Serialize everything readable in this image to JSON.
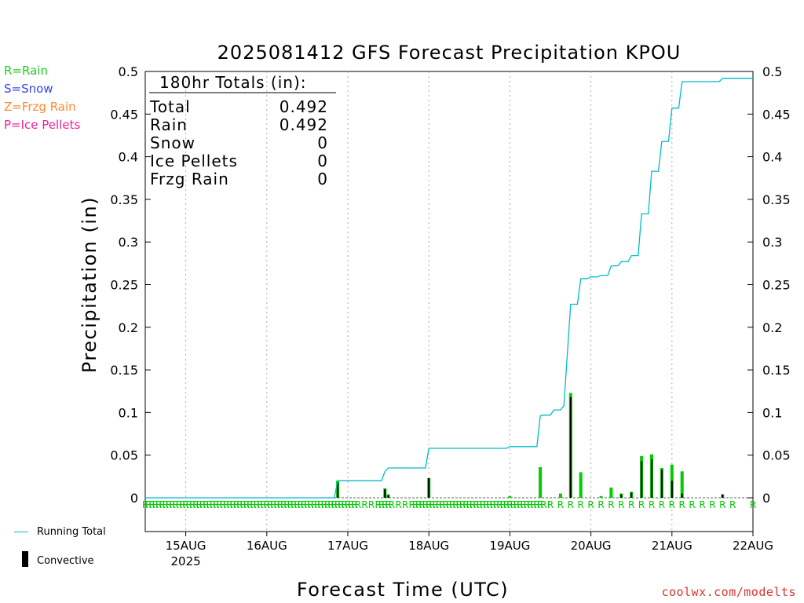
{
  "chart_data": {
    "type": "bar",
    "title": "2025081412 GFS Forecast Precipitation KPOU",
    "ylabel": "Precipitation (in)",
    "xlabel": "Forecast Time (UTC)",
    "ylim": [
      0,
      0.5
    ],
    "yticks": [
      "0",
      "0.05",
      "0.1",
      "0.15",
      "0.2",
      "0.25",
      "0.3",
      "0.35",
      "0.4",
      "0.45",
      "0.5"
    ],
    "xlim_hours": [
      0,
      180
    ],
    "xticks": [
      {
        "label": "15AUG",
        "hour": 12,
        "sublabel": "2025"
      },
      {
        "label": "16AUG",
        "hour": 36
      },
      {
        "label": "17AUG",
        "hour": 60
      },
      {
        "label": "18AUG",
        "hour": 84
      },
      {
        "label": "19AUG",
        "hour": 108
      },
      {
        "label": "20AUG",
        "hour": 132
      },
      {
        "label": "21AUG",
        "hour": 156
      },
      {
        "label": "22AUG",
        "hour": 180
      }
    ],
    "totals_box": {
      "header": "180hr Totals (in):",
      "rows": [
        {
          "label": "Total",
          "value": "0.492"
        },
        {
          "label": "Rain",
          "value": "0.492"
        },
        {
          "label": "Snow",
          "value": "0"
        },
        {
          "label": "Ice Pellets",
          "value": "0"
        },
        {
          "label": "Frzg Rain",
          "value": "0"
        }
      ]
    },
    "series": [
      {
        "name": "Rain",
        "values": [
          {
            "hour": 57,
            "value": 0.02
          },
          {
            "hour": 71,
            "value": 0.011
          },
          {
            "hour": 72,
            "value": 0.004
          },
          {
            "hour": 84,
            "value": 0.023
          },
          {
            "hour": 108,
            "value": 0.002
          },
          {
            "hour": 117,
            "value": 0.036
          },
          {
            "hour": 123,
            "value": 0.005
          },
          {
            "hour": 126,
            "value": 0.123
          },
          {
            "hour": 129,
            "value": 0.03
          },
          {
            "hour": 135,
            "value": 0.002
          },
          {
            "hour": 138,
            "value": 0.012
          },
          {
            "hour": 141,
            "value": 0.005
          },
          {
            "hour": 144,
            "value": 0.007
          },
          {
            "hour": 147,
            "value": 0.049
          },
          {
            "hour": 150,
            "value": 0.051
          },
          {
            "hour": 153,
            "value": 0.035
          },
          {
            "hour": 156,
            "value": 0.039
          },
          {
            "hour": 159,
            "value": 0.031
          },
          {
            "hour": 171,
            "value": 0.004
          }
        ]
      },
      {
        "name": "Convective",
        "values": [
          {
            "hour": 57,
            "value": 0.018
          },
          {
            "hour": 71,
            "value": 0.01
          },
          {
            "hour": 72,
            "value": 0.003
          },
          {
            "hour": 84,
            "value": 0.023
          },
          {
            "hour": 126,
            "value": 0.118
          },
          {
            "hour": 141,
            "value": 0.004
          },
          {
            "hour": 144,
            "value": 0.006
          },
          {
            "hour": 147,
            "value": 0.043
          },
          {
            "hour": 150,
            "value": 0.045
          },
          {
            "hour": 153,
            "value": 0.033
          },
          {
            "hour": 156,
            "value": 0.02
          },
          {
            "hour": 159,
            "value": 0.005
          },
          {
            "hour": 171,
            "value": 0.004
          }
        ]
      },
      {
        "name": "Running Total",
        "values": [
          {
            "hour": 0,
            "value": 0
          },
          {
            "hour": 56,
            "value": 0
          },
          {
            "hour": 57,
            "value": 0.02
          },
          {
            "hour": 70,
            "value": 0.02
          },
          {
            "hour": 71,
            "value": 0.031
          },
          {
            "hour": 72,
            "value": 0.035
          },
          {
            "hour": 83,
            "value": 0.035
          },
          {
            "hour": 84,
            "value": 0.058
          },
          {
            "hour": 107,
            "value": 0.058
          },
          {
            "hour": 108,
            "value": 0.06
          },
          {
            "hour": 116,
            "value": 0.06
          },
          {
            "hour": 117,
            "value": 0.096
          },
          {
            "hour": 118,
            "value": 0.097
          },
          {
            "hour": 120,
            "value": 0.097
          },
          {
            "hour": 121,
            "value": 0.103
          },
          {
            "hour": 123,
            "value": 0.103
          },
          {
            "hour": 124,
            "value": 0.108
          },
          {
            "hour": 126,
            "value": 0.227
          },
          {
            "hour": 128,
            "value": 0.227
          },
          {
            "hour": 129,
            "value": 0.257
          },
          {
            "hour": 131,
            "value": 0.257
          },
          {
            "hour": 132,
            "value": 0.259
          },
          {
            "hour": 134,
            "value": 0.259
          },
          {
            "hour": 135,
            "value": 0.261
          },
          {
            "hour": 137,
            "value": 0.261
          },
          {
            "hour": 138,
            "value": 0.272
          },
          {
            "hour": 140,
            "value": 0.272
          },
          {
            "hour": 141,
            "value": 0.277
          },
          {
            "hour": 143,
            "value": 0.277
          },
          {
            "hour": 144,
            "value": 0.284
          },
          {
            "hour": 146,
            "value": 0.284
          },
          {
            "hour": 147,
            "value": 0.333
          },
          {
            "hour": 149,
            "value": 0.333
          },
          {
            "hour": 150,
            "value": 0.383
          },
          {
            "hour": 152,
            "value": 0.383
          },
          {
            "hour": 153,
            "value": 0.418
          },
          {
            "hour": 155,
            "value": 0.418
          },
          {
            "hour": 156,
            "value": 0.457
          },
          {
            "hour": 158,
            "value": 0.457
          },
          {
            "hour": 159,
            "value": 0.488
          },
          {
            "hour": 170,
            "value": 0.488
          },
          {
            "hour": 171,
            "value": 0.492
          },
          {
            "hour": 180,
            "value": 0.492
          }
        ]
      }
    ],
    "precip_type_marks": {
      "symbol": "R",
      "hours": [
        0,
        1,
        2,
        3,
        4,
        5,
        6,
        7,
        8,
        9,
        10,
        11,
        12,
        13,
        14,
        15,
        16,
        17,
        18,
        19,
        20,
        21,
        22,
        23,
        24,
        25,
        26,
        27,
        28,
        29,
        30,
        31,
        32,
        33,
        34,
        35,
        36,
        37,
        38,
        39,
        40,
        41,
        42,
        43,
        44,
        45,
        46,
        47,
        48,
        49,
        50,
        51,
        52,
        53,
        54,
        55,
        56,
        57,
        58,
        59,
        60,
        61,
        62,
        63,
        65,
        67,
        69,
        70,
        71,
        72,
        73,
        75,
        77,
        79,
        80,
        81,
        82,
        83,
        84,
        85,
        86,
        87,
        88,
        89,
        90,
        91,
        92,
        93,
        94,
        95,
        96,
        97,
        98,
        99,
        100,
        101,
        102,
        103,
        104,
        105,
        106,
        107,
        108,
        109,
        110,
        111,
        112,
        113,
        114,
        115,
        116,
        117,
        118,
        120,
        123,
        126,
        129,
        132,
        135,
        138,
        141,
        144,
        147,
        150,
        153,
        156,
        159,
        162,
        165,
        168,
        171,
        174,
        180
      ]
    },
    "grid": "vertical-dotted",
    "colors": {
      "rain": "#00cc00",
      "convective": "#000000",
      "running_total": "#00bbcc",
      "snow": "#3344ee",
      "frzg_rain": "#ff8833",
      "ice_pellets": "#ee2299",
      "grid": "#aaaaaa",
      "credit": "#dd3333"
    }
  },
  "type_legend": [
    {
      "text": "R=Rain",
      "color": "#22cc22"
    },
    {
      "text": "S=Snow",
      "color": "#3344ee"
    },
    {
      "text": "Z=Frzg Rain",
      "color": "#ff8833"
    },
    {
      "text": "P=Ice Pellets",
      "color": "#ee2299"
    }
  ],
  "bottom_legend": {
    "running_total": "Running Total",
    "convective": "Convective"
  },
  "credit": "coolwx.com/modelts"
}
